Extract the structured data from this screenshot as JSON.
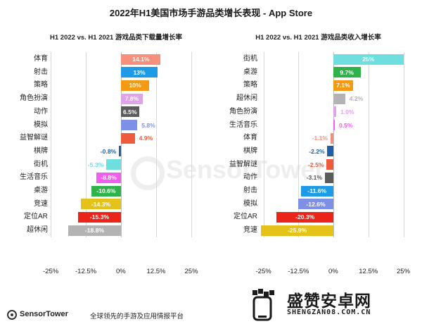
{
  "title": "2022年H1美国市场手游品类增长表现 - App Store",
  "chart_data": [
    {
      "type": "bar",
      "orientation": "horizontal",
      "title": "H1 2022 vs. H1 2021 游戏品类下载量增长率",
      "categories": [
        "体育",
        "射击",
        "策略",
        "角色扮演",
        "动作",
        "模拟",
        "益智解谜",
        "棋牌",
        "街机",
        "生活音乐",
        "桌游",
        "竞速",
        "定位AR",
        "超休闲"
      ],
      "values": [
        14.1,
        13,
        10,
        7.8,
        6.5,
        5.8,
        4.9,
        -0.8,
        -5.3,
        -8.8,
        -10.6,
        -14.3,
        -15.3,
        -18.8
      ],
      "labels": [
        "14.1%",
        "13%",
        "10%",
        "7.8%",
        "6.5%",
        "5.8%",
        "4.9%",
        "-0.8%",
        "-5.3%",
        "-8.8%",
        "-10.6%",
        "-14.3%",
        "-15.3%",
        "-18.8%"
      ],
      "colors": [
        "#f4907c",
        "#1e9be6",
        "#f39a12",
        "#e0a3ea",
        "#5b5b5b",
        "#7e90e6",
        "#ef5a3c",
        "#1f5fa6",
        "#6fdede",
        "#f05ef0",
        "#2fb24a",
        "#e5c219",
        "#ea2418",
        "#b3b3b3"
      ],
      "xlim": [
        -25,
        25
      ],
      "xticks": [
        "-25%",
        "-12.5%",
        "0%",
        "12.5%",
        "25%"
      ],
      "xtick_values": [
        -25,
        -12.5,
        0,
        12.5,
        25
      ]
    },
    {
      "type": "bar",
      "orientation": "horizontal",
      "title": "H1 2022 vs. H1 2021 游戏品类收入增长率",
      "categories": [
        "街机",
        "桌游",
        "策略",
        "超休闲",
        "角色扮演",
        "生活音乐",
        "体育",
        "棋牌",
        "益智解谜",
        "动作",
        "射击",
        "模拟",
        "定位AR",
        "竞速"
      ],
      "values": [
        25,
        9.7,
        7.1,
        4.2,
        1.0,
        0.5,
        -1.1,
        -2.2,
        -2.5,
        -3.1,
        -11.6,
        -12.6,
        -20.3,
        -25.9
      ],
      "labels": [
        "25%",
        "9.7%",
        "7.1%",
        "4.2%",
        "1.0%",
        "0.5%",
        "-1.1%",
        "-2.2%",
        "-2.5%",
        "-3.1%",
        "-11.6%",
        "-12.6%",
        "-20.3%",
        "-25.9%"
      ],
      "colors": [
        "#6fdede",
        "#2fb24a",
        "#f39a12",
        "#b3b3b3",
        "#e0a3ea",
        "#f05ef0",
        "#f4907c",
        "#1f5fa6",
        "#ef5a3c",
        "#5b5b5b",
        "#1e9be6",
        "#7e90e6",
        "#ea2418",
        "#e5c219"
      ],
      "xlim": [
        -25,
        25
      ],
      "xticks": [
        "-25%",
        "-12.5%",
        "0%",
        "12.5%",
        "25%"
      ],
      "xtick_values": [
        -25,
        -12.5,
        0,
        12.5,
        25
      ]
    }
  ],
  "footer": {
    "brand": "SensorTower",
    "text": "全球领先的手游及应用情报平台"
  },
  "watermark": {
    "site_name": "盛赞安卓网",
    "site_url": "SHENGZAN08.COM.CN"
  }
}
